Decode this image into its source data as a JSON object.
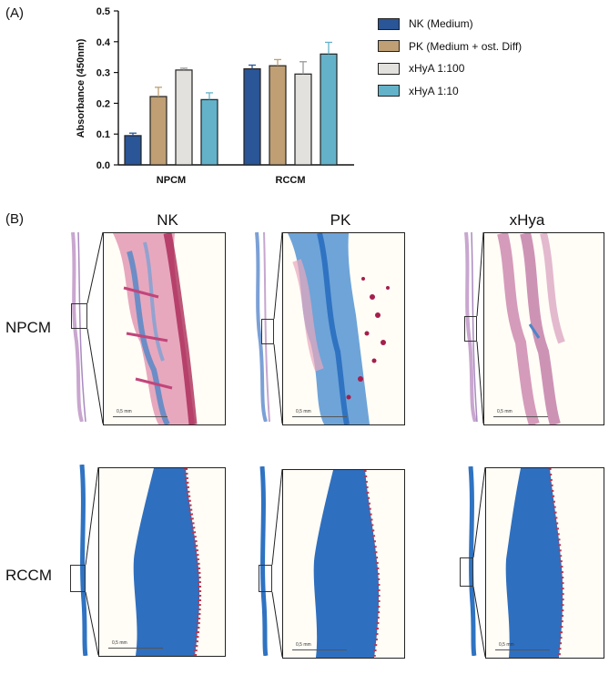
{
  "panel_a_label": "(A)",
  "panel_b_label": "(B)",
  "chart_data": {
    "type": "bar",
    "ylabel": "Absorbance (450nm)",
    "xlabel": "",
    "categories": [
      "NPCM",
      "RCCM"
    ],
    "ylim": [
      0,
      0.5
    ],
    "yticks": [
      "0.0",
      "0.1",
      "0.2",
      "0.3",
      "0.4",
      "0.5"
    ],
    "grid": false,
    "legend_position": "right",
    "series": [
      {
        "name": "NK (Medium)",
        "color": "#2a5597",
        "values": [
          0.095,
          0.312
        ],
        "errors": [
          0.008,
          0.012
        ]
      },
      {
        "name": "PK (Medium + ost. Diff)",
        "color": "#bf9f73",
        "values": [
          0.222,
          0.322
        ],
        "errors": [
          0.03,
          0.02
        ]
      },
      {
        "name": "xHyA 1:100",
        "color": "#e3e1de",
        "values": [
          0.308,
          0.295
        ],
        "errors": [
          0.006,
          0.04
        ]
      },
      {
        "name": "xHyA 1:10",
        "color": "#63b2c9",
        "values": [
          0.212,
          0.36
        ],
        "errors": [
          0.022,
          0.038
        ]
      }
    ]
  },
  "histology": {
    "columns": [
      "NK",
      "PK",
      "xHya"
    ],
    "rows": [
      "NPCM",
      "RCCM"
    ],
    "scale_bar_label": "0,5 mm"
  }
}
